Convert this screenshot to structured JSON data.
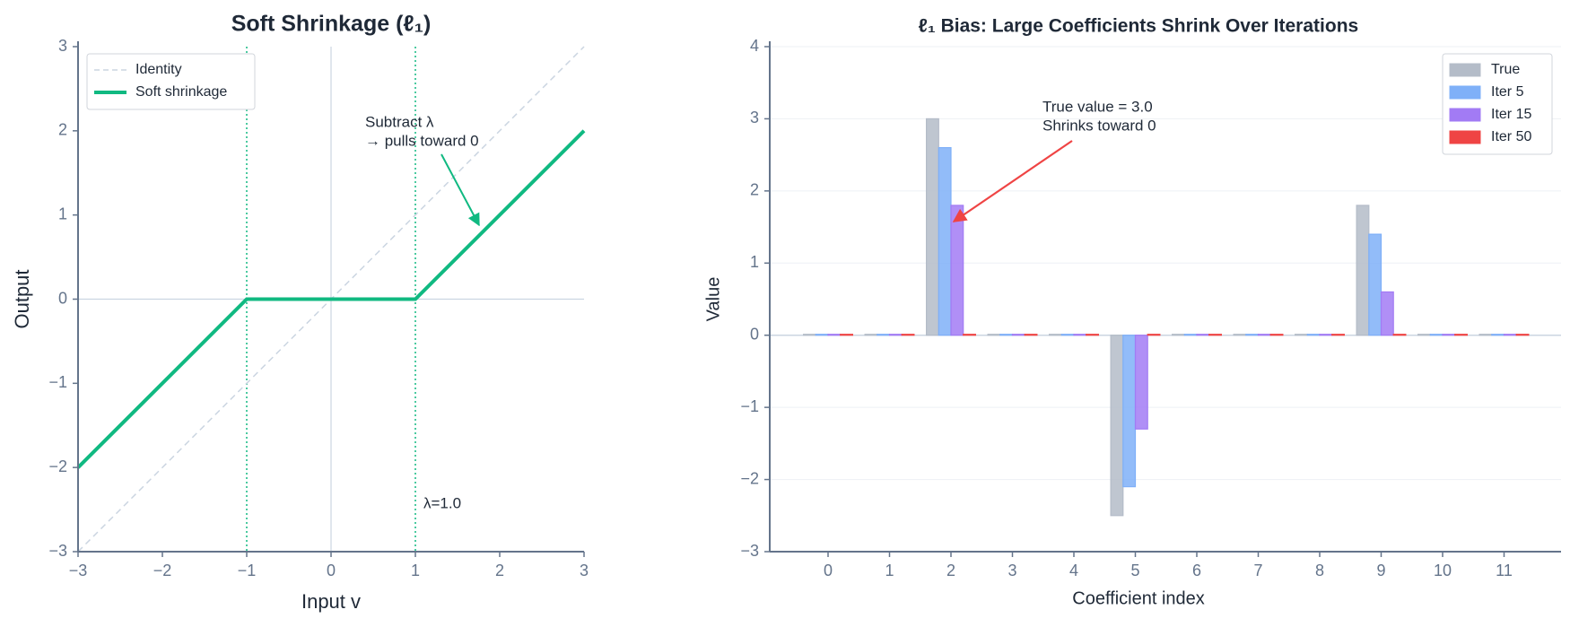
{
  "chart_data": [
    {
      "type": "line",
      "title": "Soft Shrinkage (ℓ₁)",
      "xlabel": "Input v",
      "ylabel": "Output",
      "x": [
        -3,
        -1,
        0,
        1,
        3
      ],
      "series": [
        {
          "name": "Identity",
          "color": "#cbd5e1",
          "linestyle": "dashed",
          "values": [
            -3,
            -1,
            0,
            1,
            3
          ]
        },
        {
          "name": "Soft shrinkage",
          "color": "#10b981",
          "linestyle": "solid",
          "values": [
            -2,
            0,
            0,
            0,
            2
          ]
        }
      ],
      "vlines": [
        -1,
        1
      ],
      "vline_color": "#10b981",
      "annotations": [
        "Subtract λ",
        "→ pulls toward 0",
        "λ=1.0"
      ],
      "xlim": [
        -3,
        3
      ],
      "ylim": [
        -3,
        3
      ],
      "xticks": [
        {
          "value": -3,
          "label": "−3"
        },
        {
          "value": -2,
          "label": "−2"
        },
        {
          "value": -1,
          "label": "−1"
        },
        0,
        1,
        2,
        3
      ],
      "yticks": [
        {
          "value": -3,
          "label": "−3"
        },
        {
          "value": -2,
          "label": "−2"
        },
        {
          "value": -1,
          "label": "−1"
        },
        0,
        1,
        2,
        3
      ],
      "grid": false,
      "legend": "upper left"
    },
    {
      "type": "bar",
      "title": "ℓ₁ Bias: Large Coefficients Shrink Over Iterations",
      "xlabel": "Coefficient index",
      "ylabel": "Value",
      "categories": [
        "0",
        "1",
        "2",
        "3",
        "4",
        "5",
        "6",
        "7",
        "8",
        "9",
        "10",
        "11"
      ],
      "series": [
        {
          "name": "True",
          "color": "#b4bcc8",
          "values": [
            0,
            0,
            3.0,
            0,
            0,
            -2.5,
            0,
            0,
            0,
            1.8,
            0,
            0
          ]
        },
        {
          "name": "Iter 5",
          "color": "#7fb0f8",
          "values": [
            0,
            0,
            2.6,
            0,
            0,
            -2.1,
            0,
            0,
            0,
            1.4,
            0,
            0
          ]
        },
        {
          "name": "Iter 15",
          "color": "#a27bf4",
          "values": [
            0,
            0,
            1.8,
            0,
            0,
            -1.3,
            0,
            0,
            0,
            0.6,
            0,
            0
          ]
        },
        {
          "name": "Iter 50",
          "color": "#ef4444",
          "values": [
            0,
            0,
            0,
            0,
            0,
            0,
            0,
            0,
            0,
            0,
            0,
            0
          ]
        }
      ],
      "annotations": [
        "True value = 3.0",
        "Shrinks toward 0"
      ],
      "ylim": [
        -3,
        4
      ],
      "yticks": [
        {
          "value": -3,
          "label": "−3"
        },
        {
          "value": -2,
          "label": "−2"
        },
        {
          "value": -1,
          "label": "−1"
        },
        0,
        1,
        2,
        3,
        4
      ],
      "grid": true,
      "legend": "upper right"
    }
  ]
}
